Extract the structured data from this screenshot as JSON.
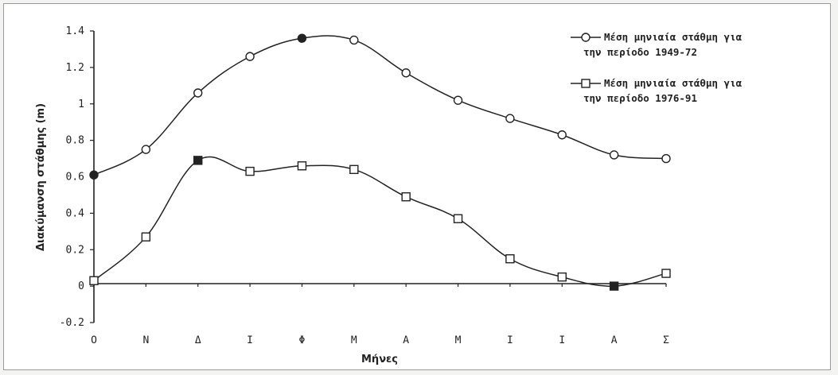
{
  "chart_data": {
    "type": "line",
    "categories": [
      "Ο",
      "Ν",
      "Δ",
      "Ι",
      "Φ",
      "Μ",
      "Α",
      "Μ",
      "Ι",
      "Ι",
      "Α",
      "Σ"
    ],
    "series": [
      {
        "name_lines": [
          "Μέση μηνιαία στάθμη για",
          "την περίοδο 1949-72"
        ],
        "marker": "circle",
        "values": [
          0.61,
          0.75,
          1.06,
          1.26,
          1.36,
          1.35,
          1.17,
          1.02,
          0.92,
          0.83,
          0.72,
          0.7
        ],
        "filled_points": [
          0,
          4
        ]
      },
      {
        "name_lines": [
          "Μέση μηνιαία στάθμη για",
          "την περίοδο 1976-91"
        ],
        "marker": "square",
        "values": [
          0.03,
          0.27,
          0.69,
          0.63,
          0.66,
          0.64,
          0.49,
          0.37,
          0.15,
          0.05,
          0.0,
          0.07
        ],
        "filled_points": [
          2,
          10
        ]
      }
    ],
    "ylim": [
      -0.2,
      1.4
    ],
    "yticks": [
      "-0.2",
      "0",
      "0.2",
      "0.4",
      "0.6",
      "0.8",
      "1",
      "1.2",
      "1.4"
    ],
    "ytick_values": [
      -0.2,
      0,
      0.2,
      0.4,
      0.6,
      0.8,
      1.0,
      1.2,
      1.4
    ],
    "xlabel": "Μήνες",
    "ylabel": "Διακύμανση στάθμης (m)",
    "legend_position": "top-right",
    "grid": false
  }
}
